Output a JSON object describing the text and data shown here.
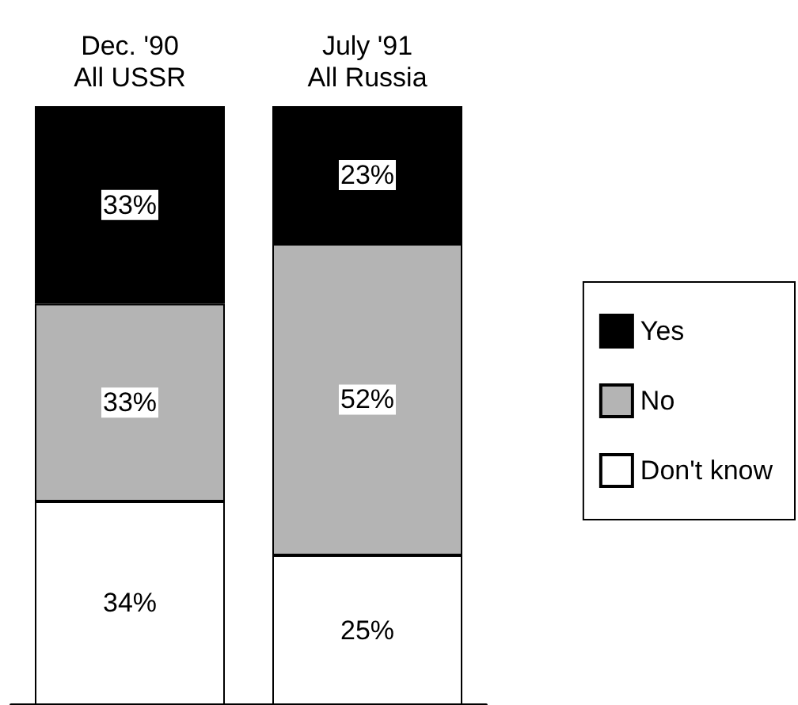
{
  "chart_data": {
    "type": "bar",
    "stacked": true,
    "categories": [
      "Dec. '90\nAll USSR",
      "July '91\nAll Russia"
    ],
    "ylim": [
      0,
      100
    ],
    "legend": "right",
    "series": [
      {
        "name": "Don't know",
        "color": "#ffffff",
        "values": [
          34,
          25
        ],
        "value_labels": [
          "34%",
          "25%"
        ]
      },
      {
        "name": "No",
        "color": "#b4b4b4",
        "values": [
          33,
          52
        ],
        "value_labels": [
          "33%",
          "52%"
        ]
      },
      {
        "name": "Yes",
        "color": "#000000",
        "values": [
          33,
          23
        ],
        "value_labels": [
          "33%",
          "23%"
        ]
      }
    ]
  }
}
